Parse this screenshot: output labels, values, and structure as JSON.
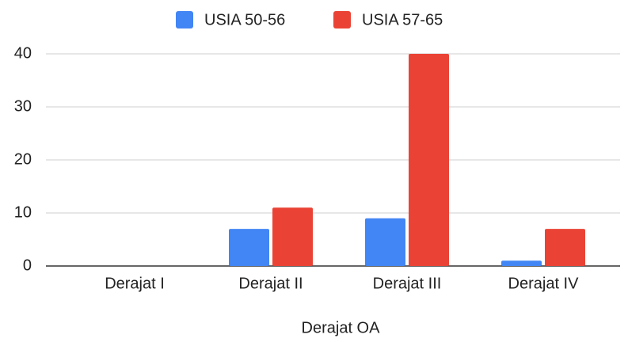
{
  "chart_data": {
    "type": "bar",
    "x_label": "Derajat OA",
    "categories": [
      "Derajat I",
      "Derajat II",
      "Derajat III",
      "Derajat IV"
    ],
    "series": [
      {
        "name": "USIA 50-56",
        "color": "#4285f4",
        "values": [
          0,
          7,
          9,
          1
        ]
      },
      {
        "name": "USIA 57-65",
        "color": "#ea4335",
        "values": [
          0,
          11,
          40,
          7
        ]
      }
    ],
    "ylim": [
      0,
      40
    ],
    "yticks": [
      0,
      10,
      20,
      30,
      40
    ],
    "grid": true,
    "legend": "top"
  }
}
